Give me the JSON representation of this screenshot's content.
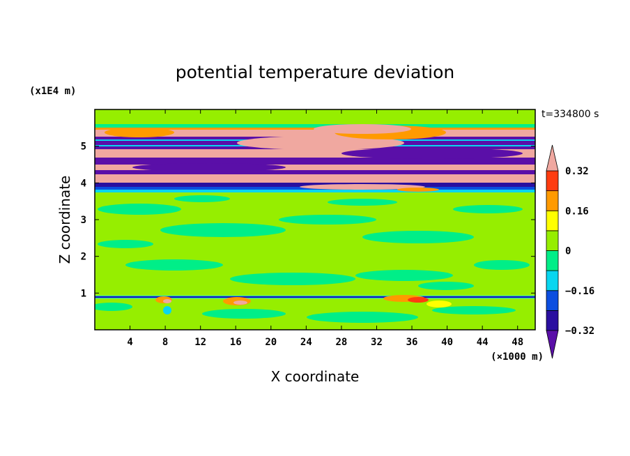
{
  "chart_data": {
    "type": "heatmap",
    "title": "potential temperature deviation",
    "xlabel": "X coordinate",
    "ylabel": "Z coordinate",
    "x_unit": "(×1000 m)",
    "y_unit": "(x1E4 m)",
    "time_label": "t=334800 s",
    "xlim": [
      0,
      50
    ],
    "ylim": [
      0,
      6
    ],
    "x_ticks": [
      4,
      8,
      12,
      16,
      20,
      24,
      28,
      32,
      36,
      40,
      44,
      48
    ],
    "y_ticks": [
      1,
      2,
      3,
      4,
      5
    ],
    "colorbar": {
      "tick_labels": [
        "0.32",
        "0.16",
        "0",
        "−0.16",
        "−0.32"
      ],
      "tick_values": [
        0.32,
        0.16,
        0,
        -0.16,
        -0.32
      ],
      "levels": [
        -0.4,
        -0.32,
        -0.24,
        -0.16,
        -0.08,
        0,
        0.08,
        0.16,
        0.24,
        0.32,
        0.4
      ],
      "colors": [
        "#5a0fa8",
        "#2a0fa0",
        "#0c4ee0",
        "#08d6f0",
        "#00ee88",
        "#96ee00",
        "#ffff00",
        "#ff9a00",
        "#ff3c10",
        "#f0a8a0"
      ],
      "extend": "both"
    }
  }
}
